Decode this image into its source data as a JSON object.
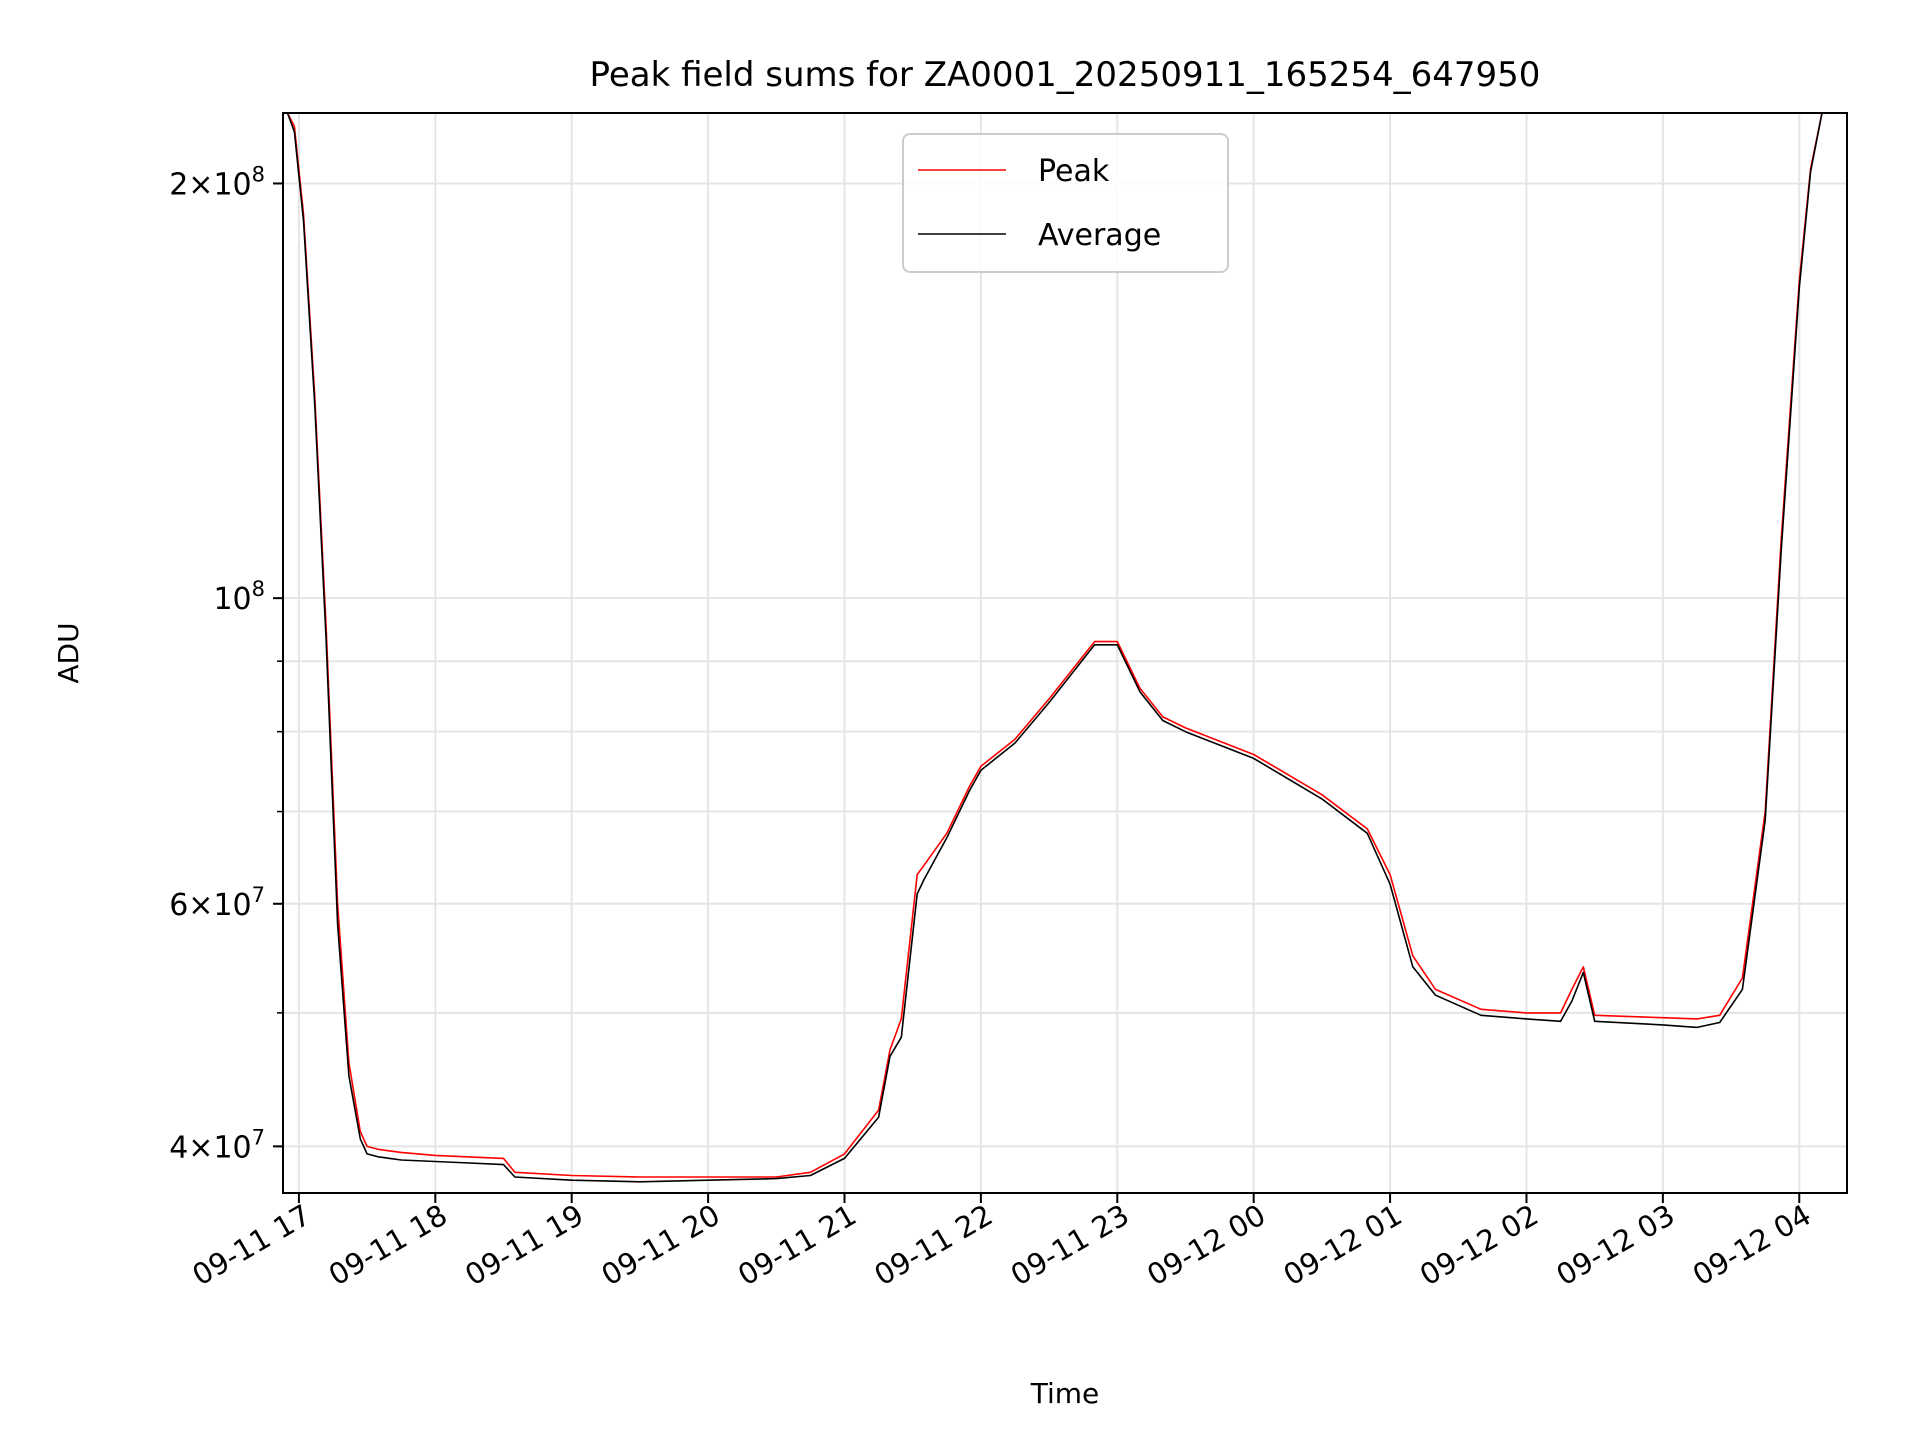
{
  "chart_data": {
    "type": "line",
    "title": "Peak field sums for ZA0001_20250911_165254_647950",
    "xlabel": "Time",
    "ylabel": "ADU",
    "yscale": "log",
    "grid": true,
    "legend_placement": "top-center",
    "xlim": [
      "2025-09-11 16:53",
      "2025-09-12 04:21"
    ],
    "ylim": [
      37000000,
      225000000
    ],
    "x_ticks": [
      "09-11 17",
      "09-11 18",
      "09-11 19",
      "09-11 20",
      "09-11 21",
      "09-11 22",
      "09-11 23",
      "09-12 00",
      "09-12 01",
      "09-12 02",
      "09-12 03",
      "09-12 04"
    ],
    "y_ticks": [
      {
        "value": 40000000,
        "base": "4",
        "mantissa": "10",
        "exp": "7"
      },
      {
        "value": 60000000,
        "base": "6",
        "mantissa": "10",
        "exp": "7"
      },
      {
        "value": 100000000,
        "base": "",
        "mantissa": "10",
        "exp": "8"
      },
      {
        "value": 200000000,
        "base": "2",
        "mantissa": "10",
        "exp": "8"
      }
    ],
    "series": [
      {
        "name": "Peak",
        "color": "#ff0000",
        "x": [
          "2025-09-11 16:53",
          "2025-09-11 16:55",
          "2025-09-11 16:58",
          "2025-09-11 17:02",
          "2025-09-11 17:07",
          "2025-09-11 17:12",
          "2025-09-11 17:17",
          "2025-09-11 17:22",
          "2025-09-11 17:27",
          "2025-09-11 17:30",
          "2025-09-11 17:35",
          "2025-09-11 17:40",
          "2025-09-11 17:45",
          "2025-09-11 18:00",
          "2025-09-11 18:15",
          "2025-09-11 18:30",
          "2025-09-11 18:35",
          "2025-09-11 19:00",
          "2025-09-11 19:30",
          "2025-09-11 20:00",
          "2025-09-11 20:30",
          "2025-09-11 20:45",
          "2025-09-11 21:00",
          "2025-09-11 21:15",
          "2025-09-11 21:20",
          "2025-09-11 21:25",
          "2025-09-11 21:32",
          "2025-09-11 21:35",
          "2025-09-11 21:45",
          "2025-09-11 21:55",
          "2025-09-11 22:00",
          "2025-09-11 22:15",
          "2025-09-11 22:30",
          "2025-09-11 22:50",
          "2025-09-11 23:00",
          "2025-09-11 23:10",
          "2025-09-11 23:20",
          "2025-09-11 23:30",
          "2025-09-12 00:00",
          "2025-09-12 00:30",
          "2025-09-12 00:50",
          "2025-09-12 01:00",
          "2025-09-12 01:10",
          "2025-09-12 01:20",
          "2025-09-12 01:40",
          "2025-09-12 02:00",
          "2025-09-12 02:15",
          "2025-09-12 02:20",
          "2025-09-12 02:25",
          "2025-09-12 02:30",
          "2025-09-12 03:00",
          "2025-09-12 03:15",
          "2025-09-12 03:25",
          "2025-09-12 03:35",
          "2025-09-12 03:45",
          "2025-09-12 03:52",
          "2025-09-12 04:00",
          "2025-09-12 04:05",
          "2025-09-12 04:10",
          "2025-09-12 04:21"
        ],
        "y": [
          225000000,
          225000000,
          220000000,
          190000000,
          140000000,
          95000000,
          60000000,
          46000000,
          41000000,
          40000000,
          39800000,
          39700000,
          39600000,
          39400000,
          39300000,
          39200000,
          38300000,
          38100000,
          38000000,
          38000000,
          38000000,
          38300000,
          39500000,
          42500000,
          47000000,
          49500000,
          63000000,
          64000000,
          67500000,
          73000000,
          75500000,
          79000000,
          84500000,
          93000000,
          93000000,
          86000000,
          82000000,
          80500000,
          77000000,
          72000000,
          68000000,
          63000000,
          55000000,
          52000000,
          50300000,
          50000000,
          50000000,
          52000000,
          54000000,
          49800000,
          49600000,
          49500000,
          49800000,
          53000000,
          70000000,
          110000000,
          170000000,
          205000000,
          225000000,
          225000000
        ]
      },
      {
        "name": "Average",
        "color": "#000000",
        "x": [
          "2025-09-11 16:53",
          "2025-09-11 16:55",
          "2025-09-11 16:58",
          "2025-09-11 17:02",
          "2025-09-11 17:07",
          "2025-09-11 17:12",
          "2025-09-11 17:17",
          "2025-09-11 17:22",
          "2025-09-11 17:27",
          "2025-09-11 17:30",
          "2025-09-11 17:35",
          "2025-09-11 17:40",
          "2025-09-11 17:45",
          "2025-09-11 18:00",
          "2025-09-11 18:15",
          "2025-09-11 18:30",
          "2025-09-11 18:35",
          "2025-09-11 19:00",
          "2025-09-11 19:30",
          "2025-09-11 20:00",
          "2025-09-11 20:30",
          "2025-09-11 20:45",
          "2025-09-11 21:00",
          "2025-09-11 21:15",
          "2025-09-11 21:20",
          "2025-09-11 21:25",
          "2025-09-11 21:32",
          "2025-09-11 21:35",
          "2025-09-11 21:45",
          "2025-09-11 21:55",
          "2025-09-11 22:00",
          "2025-09-11 22:15",
          "2025-09-11 22:30",
          "2025-09-11 22:50",
          "2025-09-11 23:00",
          "2025-09-11 23:10",
          "2025-09-11 23:20",
          "2025-09-11 23:30",
          "2025-09-12 00:00",
          "2025-09-12 00:30",
          "2025-09-12 00:50",
          "2025-09-12 01:00",
          "2025-09-12 01:10",
          "2025-09-12 01:20",
          "2025-09-12 01:40",
          "2025-09-12 02:00",
          "2025-09-12 02:15",
          "2025-09-12 02:20",
          "2025-09-12 02:25",
          "2025-09-12 02:30",
          "2025-09-12 03:00",
          "2025-09-12 03:15",
          "2025-09-12 03:25",
          "2025-09-12 03:35",
          "2025-09-12 03:45",
          "2025-09-12 03:52",
          "2025-09-12 04:00",
          "2025-09-12 04:05",
          "2025-09-12 04:10",
          "2025-09-12 04:21"
        ],
        "y": [
          225000000,
          225000000,
          218000000,
          188000000,
          138000000,
          93000000,
          58000000,
          45000000,
          40500000,
          39500000,
          39300000,
          39200000,
          39100000,
          39000000,
          38900000,
          38800000,
          38000000,
          37800000,
          37700000,
          37800000,
          37900000,
          38100000,
          39200000,
          42000000,
          46500000,
          48000000,
          61000000,
          62500000,
          67000000,
          72500000,
          75000000,
          78500000,
          84000000,
          92500000,
          92500000,
          85500000,
          81500000,
          80000000,
          76500000,
          71500000,
          67500000,
          62000000,
          54000000,
          51500000,
          49800000,
          49500000,
          49300000,
          51000000,
          53500000,
          49300000,
          49000000,
          48800000,
          49200000,
          52000000,
          69000000,
          108000000,
          168000000,
          204000000,
          225000000,
          225000000
        ]
      }
    ]
  }
}
